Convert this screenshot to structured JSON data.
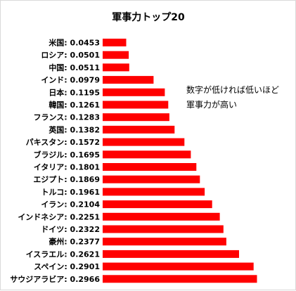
{
  "chart_data": {
    "type": "bar",
    "orientation": "horizontal",
    "title": "軍事力トップ20",
    "annotation": [
      "数字が低ければ低いほど",
      "軍事力が高い"
    ],
    "categories": [
      "米国",
      "ロシア",
      "中国",
      "インド",
      "日本",
      "韓国",
      "フランス",
      "英国",
      "パキスタン",
      "ブラジル",
      "イタリア",
      "エジプト",
      "トルコ",
      "イラン",
      "インドネシア",
      "ドイツ",
      "豪州",
      "イスラエル",
      "スペイン",
      "サウジアラビア"
    ],
    "value_labels": [
      "0.0453",
      "0.0501",
      "0.0511",
      "0.0979",
      "0.1195",
      "0.1261",
      "0.1283",
      "0.1382",
      "0.1572",
      "0.1695",
      "0.1801",
      "0.1869",
      "0.1961",
      "0.2104",
      "0.2251",
      "0.2322",
      "0.2377",
      "0.2621",
      "0.2901",
      "0.2966"
    ],
    "values": [
      0.0453,
      0.0501,
      0.0511,
      0.0979,
      0.1195,
      0.1261,
      0.1283,
      0.1382,
      0.1572,
      0.1695,
      0.1801,
      0.1869,
      0.1961,
      0.2104,
      0.2251,
      0.2322,
      0.2377,
      0.2621,
      0.2901,
      0.2966
    ],
    "xlim": [
      0,
      0.3
    ],
    "grid": false,
    "legend": "none",
    "bar_color": "#ff0000"
  }
}
